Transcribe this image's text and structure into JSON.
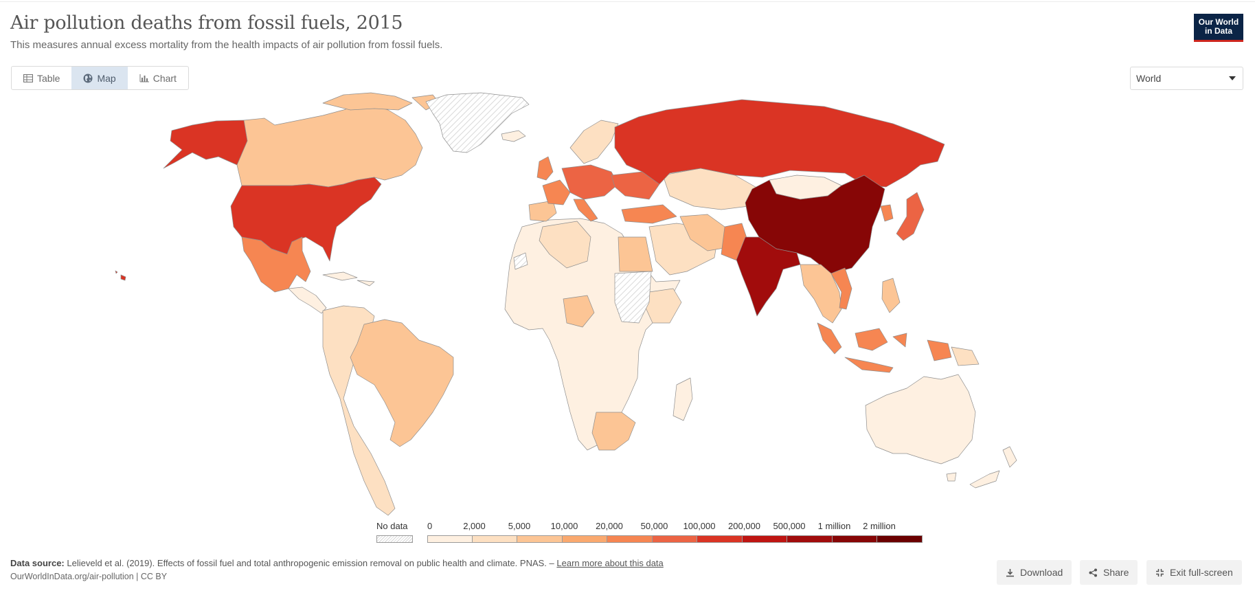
{
  "header": {
    "title": "Air pollution deaths from fossil fuels, 2015",
    "subtitle": "This measures annual excess mortality from the health impacts of air pollution from fossil fuels.",
    "logo_line1": "Our World",
    "logo_line2": "in Data"
  },
  "tabs": [
    {
      "label": "Table",
      "icon": "table-icon",
      "active": false
    },
    {
      "label": "Map",
      "icon": "globe-icon",
      "active": true
    },
    {
      "label": "Chart",
      "icon": "bar-chart-icon",
      "active": false
    }
  ],
  "entity_select": {
    "value": "World"
  },
  "legend": {
    "no_data_label": "No data",
    "bins": [
      {
        "label": "0",
        "color": "#fef0e1"
      },
      {
        "label": "2,000",
        "color": "#fde0c2"
      },
      {
        "label": "5,000",
        "color": "#fcc595"
      },
      {
        "label": "10,000",
        "color": "#faa96f"
      },
      {
        "label": "20,000",
        "color": "#f68652"
      },
      {
        "label": "50,000",
        "color": "#ec6444"
      },
      {
        "label": "100,000",
        "color": "#da3424"
      },
      {
        "label": "200,000",
        "color": "#bf1512"
      },
      {
        "label": "500,000",
        "color": "#a10c0c"
      },
      {
        "label": "1 million",
        "color": "#870606"
      },
      {
        "label": "2 million",
        "color": "#6b0000"
      }
    ]
  },
  "map_colors": {
    "north_america_canada": "#fcc595",
    "usa": "#da3424",
    "alaska": "#da3424",
    "mexico": "#f68652",
    "greenland": "no-data",
    "south_america": "#fde0c2",
    "brazil": "#fcc595",
    "russia": "#da3424",
    "china": "#870606",
    "india": "#a10c0c",
    "africa": "#fef0e1",
    "australia": "#fef0e1",
    "indonesia": "#f68652",
    "europe": "#f68652"
  },
  "footer": {
    "source_label": "Data source:",
    "source_text": "Lelieveld et al. (2019). Effects of fossil fuel and total anthropogenic emission removal on public health and climate. PNAS. –",
    "source_link": "Learn more about this data",
    "url": "OurWorldInData.org/air-pollution | CC BY"
  },
  "buttons": {
    "download": "Download",
    "share": "Share",
    "exit_fullscreen": "Exit full-screen"
  }
}
